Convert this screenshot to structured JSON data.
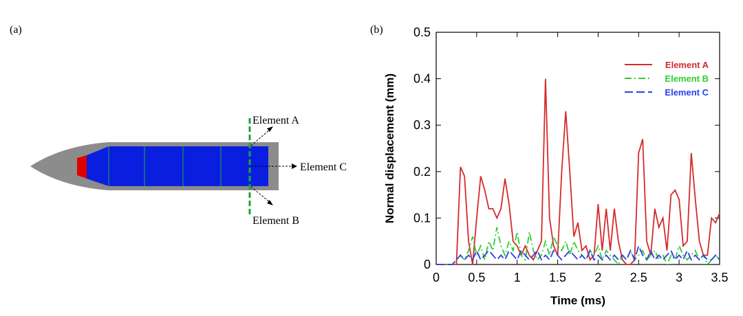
{
  "figure": {
    "panel_labels": [
      "(a)",
      "(b)"
    ],
    "diagram_labels": [
      "Element A",
      "Element C",
      "Element B"
    ]
  },
  "chart_data": {
    "type": "line",
    "xlabel": "Time (ms)",
    "ylabel": "Normal displacement (mm)",
    "x": [
      0,
      0.05,
      0.1,
      0.15,
      0.2,
      0.25,
      0.3,
      0.35,
      0.4,
      0.45,
      0.5,
      0.55,
      0.6,
      0.65,
      0.7,
      0.75,
      0.8,
      0.85,
      0.9,
      0.95,
      1,
      1.05,
      1.1,
      1.15,
      1.2,
      1.25,
      1.3,
      1.35,
      1.4,
      1.45,
      1.5,
      1.55,
      1.6,
      1.65,
      1.7,
      1.75,
      1.8,
      1.85,
      1.9,
      1.95,
      2,
      2.05,
      2.1,
      2.15,
      2.2,
      2.25,
      2.3,
      2.35,
      2.4,
      2.45,
      2.5,
      2.55,
      2.6,
      2.65,
      2.7,
      2.75,
      2.8,
      2.85,
      2.9,
      2.95,
      3,
      3.05,
      3.1,
      3.15,
      3.2,
      3.25,
      3.3,
      3.35,
      3.4,
      3.45,
      3.5
    ],
    "series": [
      {
        "name": "Element A",
        "color": "#d42a2a",
        "dash": "solid",
        "values": [
          0,
          0,
          0,
          0,
          0,
          0,
          0.21,
          0.19,
          0.05,
          0,
          0.1,
          0.19,
          0.16,
          0.12,
          0.12,
          0.1,
          0.12,
          0.185,
          0.13,
          0.05,
          0.04,
          0.02,
          0.04,
          0.02,
          0.01,
          0.03,
          0.05,
          0.4,
          0.1,
          0.04,
          0.02,
          0.2,
          0.33,
          0.2,
          0.06,
          0.09,
          0.03,
          0.04,
          0.01,
          0.02,
          0.13,
          0.03,
          0.12,
          0.03,
          0.12,
          0.05,
          0.01,
          0,
          0,
          0.01,
          0.24,
          0.27,
          0.05,
          0.02,
          0.12,
          0.08,
          0.1,
          0.03,
          0.15,
          0.16,
          0.14,
          0.04,
          0.05,
          0.24,
          0.14,
          0.05,
          0.02,
          0.02,
          0.1,
          0.09,
          0.11
        ]
      },
      {
        "name": "Element B",
        "color": "#2ecc2e",
        "dash": "dashdot",
        "values": [
          0,
          0,
          0,
          0,
          0,
          0.01,
          0.02,
          0.01,
          0.03,
          0.06,
          0.02,
          0.04,
          0.01,
          0.05,
          0.03,
          0.08,
          0.04,
          0.02,
          0.05,
          0.03,
          0.07,
          0.02,
          0.01,
          0.07,
          0.03,
          0.01,
          0.02,
          0.05,
          0.02,
          0.06,
          0.04,
          0.03,
          0.05,
          0.02,
          0.05,
          0.03,
          0.02,
          0.01,
          0.03,
          0.02,
          0.04,
          0.01,
          0.03,
          0.02,
          0.01,
          0,
          0.02,
          0.01,
          0.03,
          0.01,
          0.02,
          0.03,
          0.01,
          0.02,
          0.03,
          0.01,
          0.02,
          0,
          0.02,
          0.01,
          0.04,
          0.02,
          0.01,
          0.02,
          0.03,
          0.01,
          0.02,
          0,
          0.01,
          0.02,
          0.01
        ]
      },
      {
        "name": "Element C",
        "color": "#2a3fe6",
        "dash": "dashed",
        "values": [
          0,
          0,
          0,
          0,
          0,
          0.01,
          0.02,
          0.01,
          0.02,
          0.01,
          0.03,
          0.01,
          0.02,
          0.03,
          0.02,
          0.01,
          0.02,
          0.01,
          0.03,
          0.02,
          0.01,
          0.03,
          0.02,
          0.01,
          0.02,
          0.03,
          0.01,
          0.02,
          0.01,
          0.03,
          0.02,
          0.01,
          0.02,
          0.03,
          0.02,
          0.01,
          0.02,
          0.01,
          0.03,
          0.01,
          0.02,
          0.01,
          0.02,
          0.01,
          0.02,
          0.01,
          0.02,
          0.01,
          0.03,
          0.01,
          0.04,
          0.02,
          0.01,
          0.03,
          0.01,
          0.02,
          0.01,
          0.02,
          0.03,
          0.01,
          0.02,
          0.01,
          0.03,
          0.01,
          0.02,
          0.01,
          0.02,
          0.01,
          0.01,
          0.02,
          0.01
        ]
      }
    ],
    "xlim": [
      0,
      3.5
    ],
    "xticks": [
      0,
      0.5,
      1,
      1.5,
      2,
      2.5,
      3,
      3.5
    ],
    "ylim": [
      0,
      0.5
    ],
    "yticks": [
      0,
      0.1,
      0.2,
      0.3,
      0.4,
      0.5
    ],
    "legend": "upper right"
  }
}
